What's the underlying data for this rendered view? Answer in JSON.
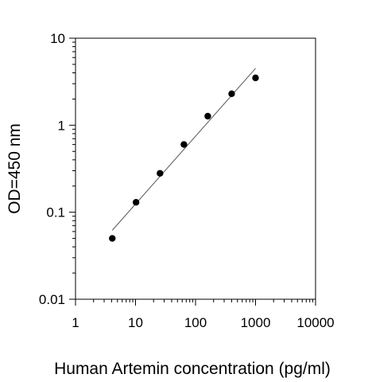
{
  "chart_data": {
    "type": "scatter",
    "title": "",
    "xlabel": "Human Artemin concentration (pg/ml)",
    "ylabel": "OD=450 nm",
    "x_scale": "log",
    "y_scale": "log",
    "xlim": [
      1,
      10000
    ],
    "ylim": [
      0.01,
      10
    ],
    "x_ticks": [
      1,
      10,
      100,
      1000,
      10000
    ],
    "x_tick_labels": [
      "1",
      "10",
      "100",
      "1000",
      "10000"
    ],
    "y_ticks": [
      0.01,
      0.1,
      1,
      10
    ],
    "y_tick_labels": [
      "0.01",
      "0.1",
      "1",
      "10"
    ],
    "grid": false,
    "legend": "none",
    "series": [
      {
        "x": [
          4.1,
          10.2,
          25.6,
          64,
          160,
          400,
          1000
        ],
        "y": [
          0.05,
          0.13,
          0.28,
          0.6,
          1.27,
          2.3,
          3.5
        ]
      }
    ],
    "fit_line": {
      "x": [
        4.1,
        1000
      ],
      "y": [
        0.062,
        4.5
      ]
    },
    "colors": {
      "points": "#000000",
      "fit_line": "#555555",
      "axis": "#000000"
    }
  }
}
